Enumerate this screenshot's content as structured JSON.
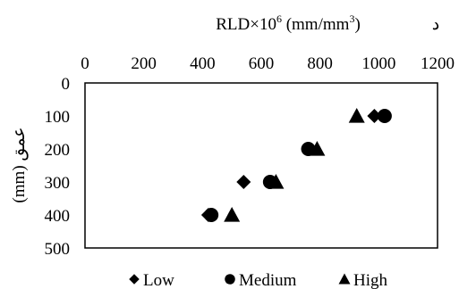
{
  "chart_data": {
    "type": "scatter",
    "title": "RLD×10",
    "title_sup": "6",
    "title_unit": " (mm/mm",
    "title_unit_sup": "3",
    "title_close": ")",
    "panel_label": "د",
    "ylabel": "عمق (mm)",
    "x_axis_position": "top",
    "y_axis_inverted": true,
    "xlim": [
      0,
      1200
    ],
    "ylim": [
      0,
      500
    ],
    "x_ticks": [
      "0",
      "200",
      "400",
      "600",
      "800",
      "1000",
      "1200"
    ],
    "y_ticks": [
      "0",
      "100",
      "200",
      "300",
      "400",
      "500"
    ],
    "grid": false,
    "legend_position": "bottom",
    "series": [
      {
        "name": "Low",
        "marker": "diamond",
        "x": [
          420,
          540,
          760,
          985
        ],
        "y": [
          400,
          300,
          200,
          100
        ]
      },
      {
        "name": "Medium",
        "marker": "circle",
        "x": [
          430,
          630,
          760,
          1020
        ],
        "y": [
          400,
          300,
          200,
          100
        ]
      },
      {
        "name": "High",
        "marker": "triangle",
        "x": [
          500,
          650,
          790,
          925
        ],
        "y": [
          400,
          300,
          200,
          100
        ]
      }
    ]
  }
}
